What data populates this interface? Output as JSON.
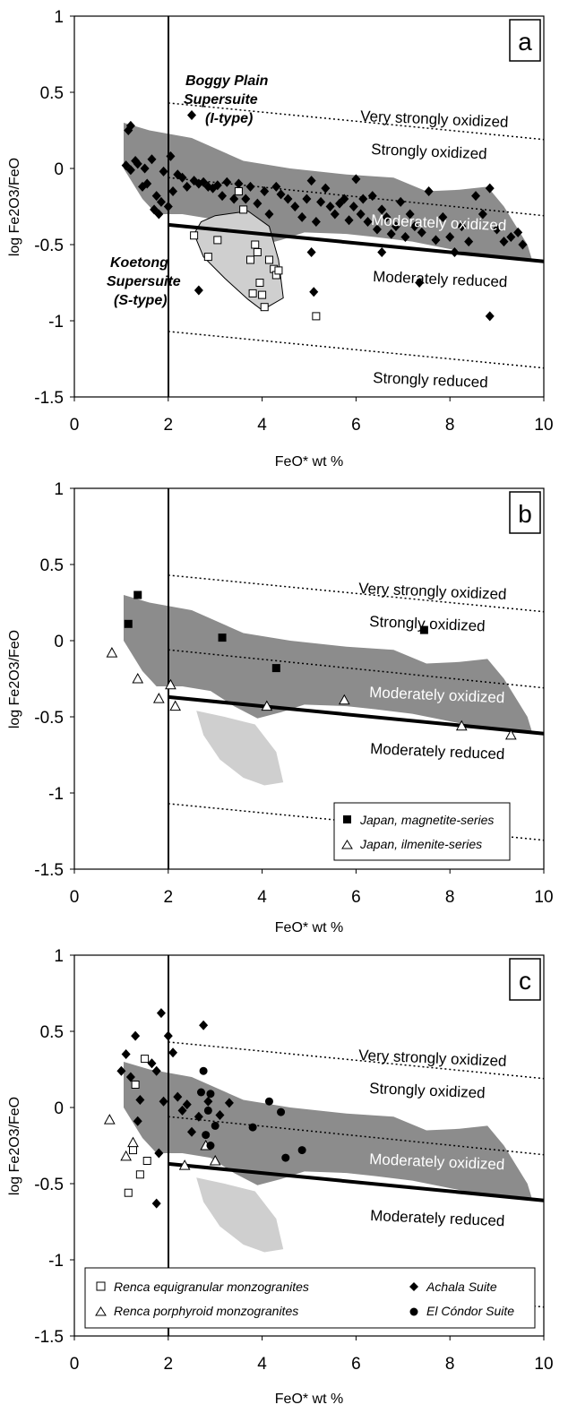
{
  "colors": {
    "field_dark": "#8c8c8c",
    "field_light": "#cfcfcf",
    "marker": "#000000",
    "background": "#ffffff"
  },
  "chart_data": [
    {
      "type": "scatter",
      "panel": "a",
      "xlabel": "FeO* wt %",
      "ylabel": "log Fe2O3/FeO",
      "xlim": [
        0,
        10
      ],
      "ylim": [
        -1.5,
        1
      ],
      "xticks": [
        "0",
        "2",
        "4",
        "6",
        "8",
        "10"
      ],
      "yticks": [
        "1",
        "0.5",
        "0",
        "-0.5",
        "-1",
        "-1.5"
      ],
      "labels": {
        "very_strongly_oxidized": "Very strongly oxidized",
        "strongly_oxidized": "Strongly oxidized",
        "moderately_oxidized": "Moderately oxidized",
        "moderately_reduced": "Moderately reduced",
        "strongly_reduced": "Strongly reduced",
        "boggy_1": "Boggy Plain",
        "boggy_2": "Supersuite",
        "boggy_3": "(I-type)",
        "koetong_1": "Koetong",
        "koetong_2": "Supersuite",
        "koetong_3": "(S-type)"
      },
      "series": [
        {
          "marker": "diamond-filled",
          "points": [
            [
              1.15,
              0.25
            ],
            [
              1.2,
              0.28
            ],
            [
              1.1,
              0.02
            ],
            [
              1.2,
              -0.01
            ],
            [
              1.3,
              0.05
            ],
            [
              1.35,
              0.03
            ],
            [
              1.45,
              -0.12
            ],
            [
              1.5,
              0.0
            ],
            [
              1.55,
              -0.1
            ],
            [
              1.65,
              0.06
            ],
            [
              1.7,
              -0.27
            ],
            [
              1.75,
              -0.18
            ],
            [
              1.8,
              -0.3
            ],
            [
              1.85,
              -0.22
            ],
            [
              1.9,
              -0.02
            ],
            [
              2.0,
              -0.25
            ],
            [
              2.05,
              0.08
            ],
            [
              2.1,
              -0.15
            ],
            [
              2.2,
              -0.04
            ],
            [
              2.3,
              -0.06
            ],
            [
              2.4,
              -0.12
            ],
            [
              2.5,
              0.35
            ],
            [
              2.55,
              -0.08
            ],
            [
              2.65,
              -0.1
            ],
            [
              2.75,
              -0.09
            ],
            [
              2.85,
              -0.12
            ],
            [
              2.95,
              -0.13
            ],
            [
              3.05,
              -0.11
            ],
            [
              3.15,
              -0.18
            ],
            [
              3.25,
              -0.09
            ],
            [
              3.4,
              -0.2
            ],
            [
              3.5,
              -0.1
            ],
            [
              3.65,
              -0.2
            ],
            [
              3.75,
              -0.12
            ],
            [
              3.9,
              -0.23
            ],
            [
              4.05,
              -0.15
            ],
            [
              4.15,
              -0.3
            ],
            [
              4.3,
              -0.12
            ],
            [
              4.4,
              -0.17
            ],
            [
              4.55,
              -0.2
            ],
            [
              4.7,
              -0.25
            ],
            [
              4.85,
              -0.32
            ],
            [
              4.95,
              -0.2
            ],
            [
              5.05,
              -0.08
            ],
            [
              5.15,
              -0.35
            ],
            [
              5.25,
              -0.22
            ],
            [
              5.35,
              -0.13
            ],
            [
              5.45,
              -0.25
            ],
            [
              5.55,
              -0.3
            ],
            [
              5.65,
              -0.23
            ],
            [
              5.75,
              -0.2
            ],
            [
              5.85,
              -0.34
            ],
            [
              5.95,
              -0.25
            ],
            [
              6.0,
              -0.07
            ],
            [
              6.1,
              -0.3
            ],
            [
              6.15,
              -0.2
            ],
            [
              6.25,
              -0.35
            ],
            [
              6.35,
              -0.18
            ],
            [
              6.45,
              -0.4
            ],
            [
              6.55,
              -0.27
            ],
            [
              6.65,
              -0.32
            ],
            [
              6.75,
              -0.43
            ],
            [
              6.85,
              -0.38
            ],
            [
              6.95,
              -0.22
            ],
            [
              7.05,
              -0.45
            ],
            [
              7.15,
              -0.3
            ],
            [
              7.25,
              -0.38
            ],
            [
              7.4,
              -0.42
            ],
            [
              7.55,
              -0.15
            ],
            [
              7.7,
              -0.47
            ],
            [
              7.85,
              -0.32
            ],
            [
              8.0,
              -0.45
            ],
            [
              8.1,
              -0.55
            ],
            [
              8.25,
              -0.38
            ],
            [
              8.4,
              -0.48
            ],
            [
              8.55,
              -0.18
            ],
            [
              8.7,
              -0.3
            ],
            [
              8.85,
              -0.13
            ],
            [
              9.0,
              -0.4
            ],
            [
              9.15,
              -0.48
            ],
            [
              9.3,
              -0.45
            ],
            [
              9.45,
              -0.42
            ],
            [
              9.55,
              -0.5
            ],
            [
              2.65,
              -0.8
            ],
            [
              5.05,
              -0.55
            ],
            [
              5.1,
              -0.81
            ],
            [
              6.55,
              -0.55
            ],
            [
              7.35,
              -0.75
            ],
            [
              8.85,
              -0.97
            ]
          ]
        },
        {
          "marker": "square-open",
          "points": [
            [
              2.55,
              -0.44
            ],
            [
              2.85,
              -0.58
            ],
            [
              3.05,
              -0.47
            ],
            [
              3.5,
              -0.15
            ],
            [
              3.6,
              -0.27
            ],
            [
              3.75,
              -0.6
            ],
            [
              3.8,
              -0.82
            ],
            [
              3.85,
              -0.5
            ],
            [
              3.9,
              -0.55
            ],
            [
              3.95,
              -0.75
            ],
            [
              4.0,
              -0.83
            ],
            [
              4.05,
              -0.91
            ],
            [
              4.15,
              -0.6
            ],
            [
              4.25,
              -0.66
            ],
            [
              4.3,
              -0.7
            ],
            [
              4.35,
              -0.67
            ],
            [
              5.15,
              -0.97
            ]
          ]
        }
      ]
    },
    {
      "type": "scatter",
      "panel": "b",
      "xlabel": "FeO* wt %",
      "ylabel": "log Fe2O3/FeO",
      "xlim": [
        0,
        10
      ],
      "ylim": [
        -1.5,
        1
      ],
      "xticks": [
        "0",
        "2",
        "4",
        "6",
        "8",
        "10"
      ],
      "yticks": [
        "1",
        "0.5",
        "0",
        "-0.5",
        "-1",
        "-1.5"
      ],
      "labels": {
        "very_strongly_oxidized": "Very strongly oxidized",
        "strongly_oxidized": "Strongly oxidized",
        "moderately_oxidized": "Moderately oxidized",
        "moderately_reduced": "Moderately reduced"
      },
      "series": [
        {
          "name": "Japan, magnetite-series",
          "marker": "square-filled",
          "points": [
            [
              1.15,
              0.11
            ],
            [
              1.35,
              0.3
            ],
            [
              3.15,
              0.02
            ],
            [
              4.3,
              -0.18
            ],
            [
              7.45,
              0.07
            ]
          ]
        },
        {
          "name": "Japan, ilmenite-series",
          "marker": "triangle-open",
          "points": [
            [
              0.8,
              -0.08
            ],
            [
              1.35,
              -0.25
            ],
            [
              1.8,
              -0.38
            ],
            [
              2.05,
              -0.29
            ],
            [
              2.15,
              -0.43
            ],
            [
              4.1,
              -0.43
            ],
            [
              5.75,
              -0.39
            ],
            [
              8.25,
              -0.56
            ],
            [
              9.3,
              -0.62
            ]
          ]
        }
      ]
    },
    {
      "type": "scatter",
      "panel": "c",
      "xlabel": "FeO* wt %",
      "ylabel": "log Fe2O3/FeO",
      "xlim": [
        0,
        10
      ],
      "ylim": [
        -1.5,
        1
      ],
      "xticks": [
        "0",
        "2",
        "4",
        "6",
        "8",
        "10"
      ],
      "yticks": [
        "1",
        "0.5",
        "0",
        "-0.5",
        "-1",
        "-1.5"
      ],
      "labels": {
        "very_strongly_oxidized": "Very strongly oxidized",
        "strongly_oxidized": "Strongly oxidized",
        "moderately_oxidized": "Moderately oxidized",
        "moderately_reduced": "Moderately reduced"
      },
      "series": [
        {
          "name": "Renca equigranular monzogranites",
          "marker": "square-open",
          "points": [
            [
              1.15,
              -0.56
            ],
            [
              1.25,
              -0.28
            ],
            [
              1.3,
              0.15
            ],
            [
              1.4,
              -0.44
            ],
            [
              1.5,
              0.32
            ],
            [
              1.55,
              -0.35
            ]
          ]
        },
        {
          "name": "Renca porphyroid monzogranites",
          "marker": "triangle-open",
          "points": [
            [
              0.75,
              -0.08
            ],
            [
              1.1,
              -0.32
            ],
            [
              1.25,
              -0.23
            ],
            [
              2.35,
              -0.38
            ],
            [
              2.8,
              -0.25
            ],
            [
              3.0,
              -0.35
            ]
          ]
        },
        {
          "name": "Achala Suite",
          "marker": "diamond-filled",
          "points": [
            [
              1.0,
              0.24
            ],
            [
              1.1,
              0.35
            ],
            [
              1.2,
              0.2
            ],
            [
              1.3,
              0.47
            ],
            [
              1.35,
              -0.09
            ],
            [
              1.4,
              0.05
            ],
            [
              1.65,
              0.29
            ],
            [
              1.75,
              0.24
            ],
            [
              1.8,
              -0.3
            ],
            [
              1.85,
              0.62
            ],
            [
              1.9,
              0.04
            ],
            [
              2.0,
              0.47
            ],
            [
              2.1,
              0.36
            ],
            [
              2.2,
              0.07
            ],
            [
              2.3,
              -0.02
            ],
            [
              2.4,
              0.02
            ],
            [
              2.5,
              -0.16
            ],
            [
              2.65,
              -0.06
            ],
            [
              2.75,
              0.54
            ],
            [
              2.85,
              0.04
            ],
            [
              3.1,
              -0.05
            ],
            [
              3.3,
              0.03
            ],
            [
              1.75,
              -0.63
            ]
          ]
        },
        {
          "name": "El Cóndor Suite",
          "marker": "circle-filled",
          "points": [
            [
              2.7,
              0.1
            ],
            [
              2.75,
              0.24
            ],
            [
              2.8,
              -0.18
            ],
            [
              2.85,
              -0.02
            ],
            [
              2.9,
              0.09
            ],
            [
              3.0,
              -0.12
            ],
            [
              3.8,
              -0.13
            ],
            [
              4.15,
              0.04
            ],
            [
              4.4,
              -0.03
            ],
            [
              4.5,
              -0.33
            ],
            [
              4.85,
              -0.28
            ],
            [
              2.9,
              -0.25
            ]
          ]
        }
      ]
    }
  ]
}
